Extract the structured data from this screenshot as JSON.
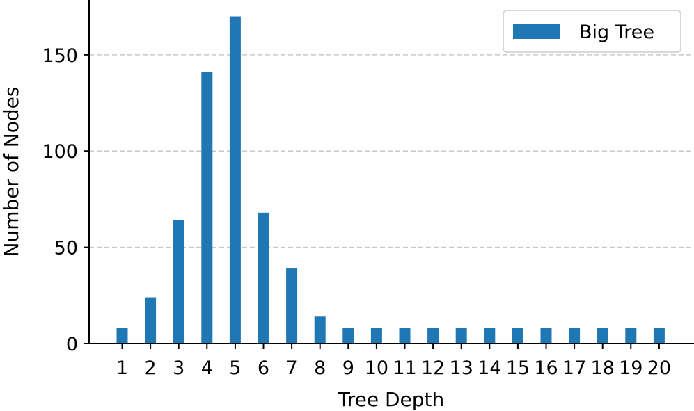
{
  "chart_data": {
    "type": "bar",
    "categories": [
      "1",
      "2",
      "3",
      "4",
      "5",
      "6",
      "7",
      "8",
      "9",
      "10",
      "11",
      "12",
      "13",
      "14",
      "15",
      "16",
      "17",
      "18",
      "19",
      "20"
    ],
    "series": [
      {
        "name": "Big Tree",
        "color": "#1f77b4",
        "values": [
          8,
          24,
          64,
          141,
          170,
          68,
          39,
          14,
          8,
          8,
          8,
          8,
          8,
          8,
          8,
          8,
          8,
          8,
          8,
          8
        ]
      }
    ],
    "xlabel": "Tree Depth",
    "ylabel": "Number of Nodes",
    "ylim": [
      0,
      178.5
    ],
    "yticks": [
      0,
      50,
      100,
      150
    ],
    "grid": "y-dashed",
    "legend_position": "top-right"
  }
}
